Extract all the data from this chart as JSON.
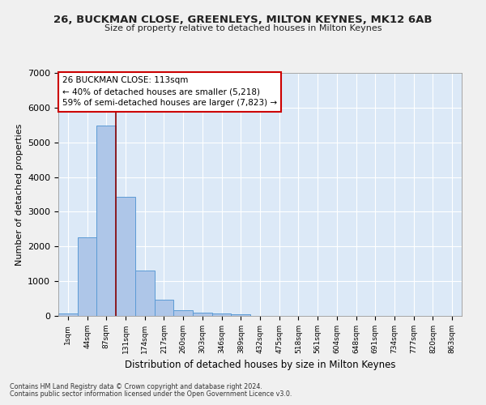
{
  "title_line1": "26, BUCKMAN CLOSE, GREENLEYS, MILTON KEYNES, MK12 6AB",
  "title_line2": "Size of property relative to detached houses in Milton Keynes",
  "xlabel": "Distribution of detached houses by size in Milton Keynes",
  "ylabel": "Number of detached properties",
  "footnote1": "Contains HM Land Registry data © Crown copyright and database right 2024.",
  "footnote2": "Contains public sector information licensed under the Open Government Licence v3.0.",
  "bar_color": "#aec6e8",
  "bar_edge_color": "#5b9bd5",
  "background_color": "#dce9f7",
  "grid_color": "#ffffff",
  "fig_background": "#f0f0f0",
  "vline_color": "#8b0000",
  "vline_x": 2.5,
  "annotation_text": "26 BUCKMAN CLOSE: 113sqm\n← 40% of detached houses are smaller (5,218)\n59% of semi-detached houses are larger (7,823) →",
  "categories": [
    "1sqm",
    "44sqm",
    "87sqm",
    "131sqm",
    "174sqm",
    "217sqm",
    "260sqm",
    "303sqm",
    "346sqm",
    "389sqm",
    "432sqm",
    "475sqm",
    "518sqm",
    "561sqm",
    "604sqm",
    "648sqm",
    "691sqm",
    "734sqm",
    "777sqm",
    "820sqm",
    "863sqm"
  ],
  "values": [
    75,
    2270,
    5480,
    3420,
    1310,
    460,
    155,
    95,
    75,
    55,
    0,
    0,
    0,
    0,
    0,
    0,
    0,
    0,
    0,
    0,
    0
  ],
  "ylim": [
    0,
    7000
  ],
  "yticks": [
    0,
    1000,
    2000,
    3000,
    4000,
    5000,
    6000,
    7000
  ]
}
